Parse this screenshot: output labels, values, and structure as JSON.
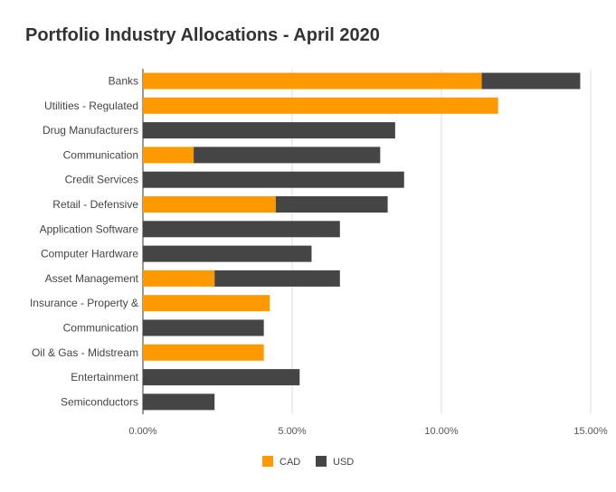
{
  "chart_data": {
    "type": "bar",
    "orientation": "horizontal",
    "stacked": true,
    "title": "Portfolio Industry Allocations - April 2020",
    "categories": [
      "Banks",
      "Utilities - Regulated",
      "Drug Manufacturers",
      "Communication",
      "Credit Services",
      "Retail - Defensive",
      "Application Software",
      "Computer Hardware",
      "Asset Management",
      "Insurance - Property &",
      "Communication",
      "Oil & Gas - Midstream",
      "Entertainment",
      "Semiconductors"
    ],
    "series": [
      {
        "name": "CAD",
        "color": "#FF9900",
        "values": [
          11.35,
          11.9,
          0,
          1.7,
          0,
          4.45,
          0,
          0,
          2.4,
          4.25,
          0,
          4.05,
          0,
          0
        ]
      },
      {
        "name": "USD",
        "color": "#454545",
        "values": [
          3.3,
          0,
          8.45,
          6.25,
          8.75,
          3.75,
          6.6,
          5.65,
          4.2,
          0,
          4.05,
          0,
          5.25,
          2.4
        ]
      }
    ],
    "xlim": [
      0,
      15
    ],
    "xticks": [
      "0.00%",
      "5.00%",
      "10.00%",
      "15.00%"
    ],
    "xtick_values": [
      0,
      5,
      10,
      15
    ],
    "grid": true,
    "legend": "bottom"
  }
}
